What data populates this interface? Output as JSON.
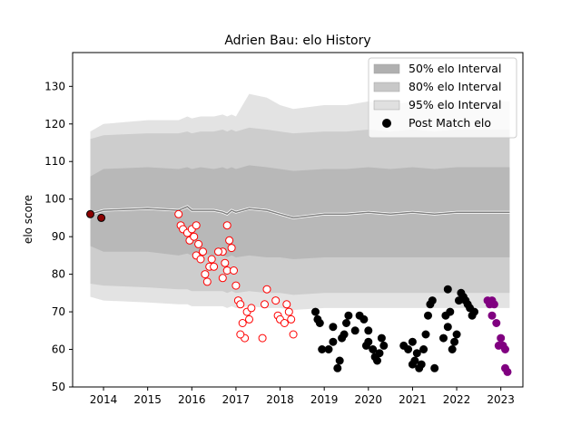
{
  "chart_data": {
    "type": "scatter",
    "title": "Adrien Bau: elo History",
    "ylabel": "elo score",
    "xlabel": "",
    "xlim": [
      2013.3,
      2023.5
    ],
    "ylim": [
      50,
      139
    ],
    "x_ticks": [
      2014,
      2015,
      2016,
      2017,
      2018,
      2019,
      2020,
      2021,
      2022,
      2023
    ],
    "y_ticks": [
      50,
      60,
      70,
      80,
      90,
      100,
      110,
      120,
      130
    ],
    "legend": {
      "placement": "top-right",
      "entries": [
        {
          "label": "50% elo Interval",
          "color": "#b0b0b0"
        },
        {
          "label": "80% elo Interval",
          "color": "#c8c8c8"
        },
        {
          "label": "95% elo Interval",
          "color": "#e0e0e0"
        },
        {
          "label": "Post Match elo",
          "color": "#000000"
        }
      ]
    },
    "interval_x": [
      2013.7,
      2014.0,
      2015.0,
      2015.7,
      2015.9,
      2016.0,
      2016.2,
      2016.5,
      2016.7,
      2016.8,
      2016.9,
      2017.0,
      2017.3,
      2017.7,
      2018.0,
      2018.3,
      2019.0,
      2019.5,
      2020.0,
      2020.5,
      2021.0,
      2021.5,
      2022.0,
      2022.5,
      2023.0,
      2023.2
    ],
    "median": [
      96,
      97,
      97.5,
      97,
      98,
      97,
      97,
      97,
      96.5,
      96,
      97,
      96.5,
      97.5,
      97,
      96,
      95,
      96,
      96,
      96.5,
      96,
      96.5,
      96,
      96.5,
      96.5,
      96.5,
      96.5
    ],
    "interval_50": {
      "lower": [
        87.5,
        86,
        86,
        85,
        85.5,
        85,
        85.5,
        85,
        85,
        84.5,
        85,
        84.5,
        85,
        84.5,
        84.5,
        84,
        84.5,
        84.5,
        84.5,
        84.5,
        84.5,
        84.5,
        84.5,
        84.5,
        84.5,
        84.5
      ],
      "upper": [
        106,
        108,
        108.5,
        108,
        108.5,
        108,
        108.5,
        108,
        108.5,
        108,
        108.5,
        108,
        109,
        108.5,
        108,
        107.5,
        108,
        108,
        108.5,
        108,
        108.5,
        108,
        108.5,
        108.5,
        108.5,
        108.5
      ]
    },
    "interval_80": {
      "lower": [
        77.5,
        77,
        76.5,
        76,
        76,
        75.5,
        75.5,
        75.5,
        75.5,
        75,
        75.5,
        75,
        75.5,
        75,
        75,
        74.5,
        75,
        75,
        75,
        75,
        75,
        75,
        75,
        75,
        75,
        75
      ]
    },
    "interval_80_upper": [
      116,
      117,
      117.5,
      117.5,
      118,
      117.5,
      118,
      118,
      118.5,
      118,
      118.5,
      118,
      119,
      118.5,
      118,
      117.5,
      118,
      118,
      118.5,
      118,
      118.5,
      118,
      118.5,
      118.5,
      118.5,
      118.5
    ],
    "interval_95": {
      "lower": [
        74,
        73,
        72.5,
        72,
        72,
        71.5,
        71.5,
        71.5,
        71.5,
        71,
        71.5,
        71,
        71.5,
        71,
        71,
        70.5,
        71,
        71,
        71,
        71,
        71,
        71,
        71,
        71,
        71,
        71
      ],
      "upper": [
        118,
        120,
        121,
        121,
        122,
        121.5,
        122,
        122,
        122.5,
        122,
        122.5,
        122,
        128,
        127,
        125,
        124,
        125,
        125,
        126,
        125,
        126,
        125,
        126,
        126,
        126,
        126
      ]
    },
    "series": [
      {
        "name": "Post Match elo",
        "fill": "#000000",
        "edge": "#000000",
        "points": [
          [
            2019.1,
            60
          ],
          [
            2019.2,
            62
          ],
          [
            2019.3,
            55
          ],
          [
            2019.35,
            57
          ],
          [
            2019.4,
            63
          ],
          [
            2019.45,
            64
          ],
          [
            2019.5,
            67
          ],
          [
            2019.55,
            69
          ],
          [
            2019.2,
            66
          ],
          [
            2018.8,
            70
          ],
          [
            2018.9,
            67
          ],
          [
            2018.85,
            68
          ],
          [
            2018.95,
            60
          ],
          [
            2019.7,
            65
          ],
          [
            2019.8,
            69
          ],
          [
            2019.9,
            68
          ],
          [
            2019.95,
            61
          ],
          [
            2020.0,
            62
          ],
          [
            2020.1,
            60
          ],
          [
            2020.15,
            58
          ],
          [
            2020.2,
            57
          ],
          [
            2020.25,
            59
          ],
          [
            2020.3,
            63
          ],
          [
            2020.35,
            61
          ],
          [
            2020.0,
            65
          ],
          [
            2020.8,
            61
          ],
          [
            2020.9,
            60
          ],
          [
            2021.0,
            56
          ],
          [
            2021.05,
            57
          ],
          [
            2021.1,
            59
          ],
          [
            2021.15,
            55
          ],
          [
            2021.2,
            56
          ],
          [
            2021.25,
            60
          ],
          [
            2021.3,
            64
          ],
          [
            2021.35,
            69
          ],
          [
            2021.4,
            72
          ],
          [
            2021.45,
            73
          ],
          [
            2021.7,
            63
          ],
          [
            2021.75,
            69
          ],
          [
            2021.8,
            66
          ],
          [
            2021.85,
            70
          ],
          [
            2021.9,
            60
          ],
          [
            2021.95,
            62
          ],
          [
            2022.0,
            64
          ],
          [
            2022.05,
            73
          ],
          [
            2022.1,
            75
          ],
          [
            2022.15,
            74
          ],
          [
            2022.2,
            73
          ],
          [
            2022.25,
            72
          ],
          [
            2022.3,
            71
          ],
          [
            2022.35,
            69
          ],
          [
            2022.4,
            70
          ],
          [
            2021.8,
            76
          ],
          [
            2021.0,
            62
          ],
          [
            2021.5,
            55
          ]
        ]
      },
      {
        "name": "",
        "fill": "#ffffff",
        "edge": "#ff0000",
        "points": [
          [
            2015.7,
            96
          ],
          [
            2015.75,
            93
          ],
          [
            2015.8,
            92
          ],
          [
            2015.9,
            91
          ],
          [
            2015.95,
            89
          ],
          [
            2016.0,
            92
          ],
          [
            2016.05,
            90
          ],
          [
            2016.1,
            93
          ],
          [
            2016.15,
            88
          ],
          [
            2016.1,
            85
          ],
          [
            2016.2,
            84
          ],
          [
            2016.25,
            86
          ],
          [
            2016.3,
            80
          ],
          [
            2016.35,
            78
          ],
          [
            2016.4,
            82
          ],
          [
            2016.45,
            84
          ],
          [
            2016.7,
            86
          ],
          [
            2016.75,
            83
          ],
          [
            2016.8,
            81
          ],
          [
            2016.85,
            89
          ],
          [
            2016.9,
            87
          ],
          [
            2016.95,
            81
          ],
          [
            2017.0,
            77
          ],
          [
            2017.05,
            73
          ],
          [
            2017.1,
            72
          ],
          [
            2017.15,
            67
          ],
          [
            2017.2,
            63
          ],
          [
            2017.25,
            70
          ],
          [
            2017.3,
            68
          ],
          [
            2017.35,
            71
          ],
          [
            2016.8,
            93
          ],
          [
            2016.7,
            79
          ],
          [
            2017.6,
            63
          ],
          [
            2017.65,
            72
          ],
          [
            2017.7,
            76
          ],
          [
            2017.9,
            73
          ],
          [
            2017.95,
            69
          ],
          [
            2018.0,
            68
          ],
          [
            2018.1,
            67
          ],
          [
            2018.15,
            72
          ],
          [
            2018.2,
            70
          ],
          [
            2018.25,
            68
          ],
          [
            2018.3,
            64
          ],
          [
            2017.1,
            64
          ],
          [
            2016.6,
            86
          ],
          [
            2016.5,
            82
          ]
        ]
      },
      {
        "name": "",
        "fill": "#800080",
        "edge": "#800080",
        "points": [
          [
            2022.7,
            73
          ],
          [
            2022.75,
            72
          ],
          [
            2022.8,
            73
          ],
          [
            2022.85,
            72
          ],
          [
            2022.8,
            69
          ],
          [
            2022.9,
            67
          ],
          [
            2022.95,
            61
          ],
          [
            2023.0,
            63
          ],
          [
            2023.05,
            61
          ],
          [
            2023.1,
            60
          ],
          [
            2023.1,
            55
          ],
          [
            2023.15,
            54
          ]
        ]
      },
      {
        "name": "",
        "fill": "#8b0000",
        "edge": "#000000",
        "points": [
          [
            2013.7,
            96
          ],
          [
            2013.95,
            95
          ]
        ]
      }
    ]
  }
}
